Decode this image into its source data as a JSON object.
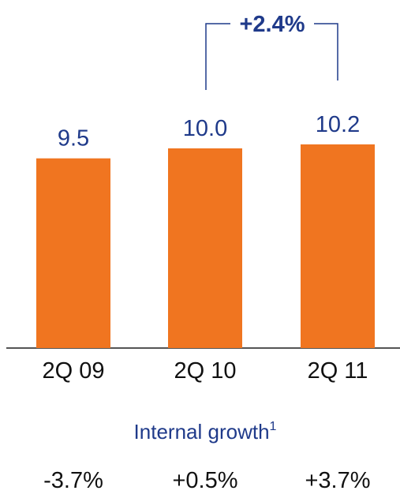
{
  "chart_data": {
    "type": "bar",
    "categories": [
      "2Q 09",
      "2Q 10",
      "2Q 11"
    ],
    "values": [
      9.5,
      10.0,
      10.2
    ],
    "value_labels": [
      "9.5",
      "10.0",
      "10.2"
    ],
    "bar_color": "#f07520",
    "change_annotation": {
      "from": "2Q 10",
      "to": "2Q 11",
      "label": "+2.4%"
    },
    "internal_growth": {
      "title": "Internal growth",
      "footnote_marker": "1",
      "values": [
        "-3.7%",
        "+0.5%",
        "+3.7%"
      ]
    }
  },
  "colors": {
    "accent_text": "#1f3a8a",
    "bar": "#f07520",
    "axis": "#555555",
    "text": "#111111"
  }
}
